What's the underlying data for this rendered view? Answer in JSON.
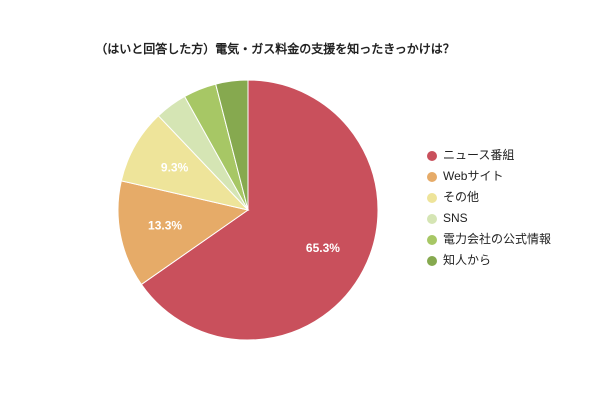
{
  "chart_data": {
    "type": "pie",
    "title": "（はいと回答した方）電気・ガス料金の支援を知ったきっかけは？",
    "categories": [
      "ニュース番組",
      "Webサイト",
      "その他",
      "SNS",
      "電力会社の公式情報",
      "知人から"
    ],
    "values": [
      65.3,
      13.3,
      9.3,
      4.0,
      4.1,
      4.0
    ],
    "value_labels": [
      "65.3%",
      "13.3%",
      "9.3%",
      null,
      null,
      null
    ],
    "colors": [
      "#c9505c",
      "#e6ab68",
      "#eee49a",
      "#d5e5b4",
      "#a7c765",
      "#86a94f"
    ],
    "legend": "right"
  }
}
